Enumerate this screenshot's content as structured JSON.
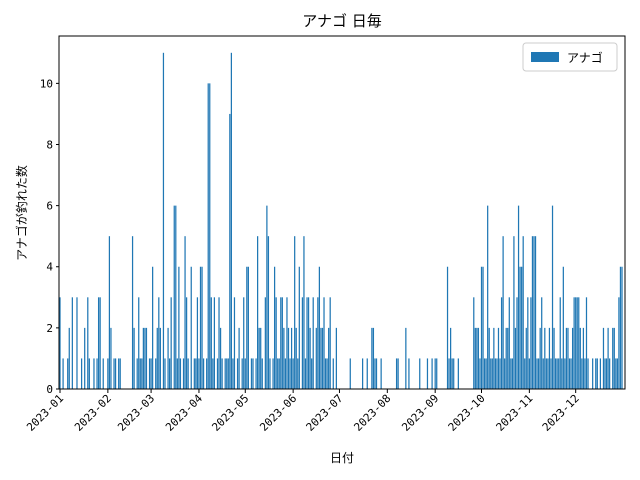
{
  "chart_data": {
    "type": "bar",
    "title": "アナゴ 日毎",
    "xlabel": "日付",
    "ylabel": "アナゴが釣れた数",
    "xticks": [
      "2023-01",
      "2023-02",
      "2023-03",
      "2023-04",
      "2023-05",
      "2023-06",
      "2023-07",
      "2023-08",
      "2023-09",
      "2023-10",
      "2023-11",
      "2023-12"
    ],
    "ylim": [
      0,
      11.55
    ],
    "yticks": [
      0,
      2,
      4,
      6,
      8,
      10
    ],
    "legend": "upper right",
    "series": [
      {
        "name": "アナゴ",
        "color": "#1f77b4",
        "values": [
          3,
          0,
          1,
          0,
          0,
          1,
          2,
          0,
          3,
          0,
          0,
          3,
          0,
          0,
          1,
          0,
          2,
          0,
          3,
          1,
          0,
          0,
          1,
          0,
          1,
          3,
          3,
          0,
          1,
          0,
          0,
          1,
          5,
          2,
          0,
          1,
          1,
          0,
          1,
          1,
          0,
          0,
          0,
          0,
          0,
          0,
          0,
          5,
          2,
          0,
          1,
          3,
          1,
          1,
          2,
          2,
          2,
          0,
          1,
          1,
          4,
          0,
          1,
          2,
          3,
          2,
          0,
          11,
          1,
          0,
          2,
          1,
          3,
          0,
          6,
          6,
          1,
          4,
          1,
          0,
          1,
          5,
          3,
          1,
          0,
          4,
          0,
          1,
          1,
          3,
          1,
          4,
          4,
          1,
          0,
          1,
          10,
          10,
          3,
          1,
          3,
          0,
          1,
          3,
          2,
          1,
          0,
          1,
          1,
          1,
          9,
          11,
          1,
          3,
          0,
          1,
          2,
          0,
          1,
          3,
          1,
          4,
          4,
          0,
          1,
          1,
          0,
          1,
          5,
          2,
          2,
          1,
          0,
          3,
          6,
          5,
          1,
          0,
          1,
          4,
          3,
          1,
          1,
          3,
          3,
          2,
          1,
          3,
          2,
          1,
          2,
          1,
          5,
          2,
          1,
          4,
          0,
          3,
          5,
          1,
          3,
          3,
          2,
          1,
          3,
          0,
          2,
          3,
          4,
          2,
          2,
          3,
          1,
          1,
          2,
          3,
          0,
          1,
          0,
          2,
          0,
          0,
          0,
          0,
          0,
          0,
          0,
          0,
          1,
          0,
          0,
          0,
          0,
          0,
          0,
          0,
          1,
          0,
          0,
          1,
          0,
          0,
          2,
          2,
          1,
          1,
          0,
          0,
          1,
          0,
          0,
          0,
          0,
          0,
          0,
          0,
          0,
          0,
          1,
          1,
          0,
          0,
          0,
          0,
          2,
          0,
          1,
          0,
          0,
          0,
          0,
          0,
          0,
          1,
          0,
          0,
          0,
          0,
          1,
          0,
          0,
          1,
          0,
          1,
          1,
          0,
          0,
          0,
          0,
          0,
          0,
          4,
          1,
          2,
          1,
          1,
          0,
          0,
          1,
          0,
          0,
          0,
          0,
          0,
          0,
          0,
          0,
          0,
          3,
          2,
          2,
          2,
          1,
          4,
          4,
          1,
          1,
          6,
          2,
          1,
          1,
          2,
          1,
          1,
          2,
          1,
          3,
          5,
          1,
          2,
          2,
          3,
          1,
          1,
          5,
          2,
          3,
          6,
          4,
          4,
          5,
          1,
          2,
          3,
          1,
          3,
          5,
          5,
          5,
          1,
          1,
          2,
          3,
          1,
          2,
          1,
          1,
          2,
          1,
          6,
          2,
          1,
          1,
          1,
          3,
          1,
          4,
          1,
          2,
          2,
          1,
          1,
          2,
          3,
          3,
          3,
          3,
          2,
          1,
          2,
          1,
          3,
          1,
          0,
          0,
          1,
          0,
          1,
          1,
          0,
          1,
          0,
          2,
          1,
          1,
          2,
          1,
          0,
          2,
          2,
          1,
          1,
          3,
          4,
          4
        ]
      }
    ]
  }
}
